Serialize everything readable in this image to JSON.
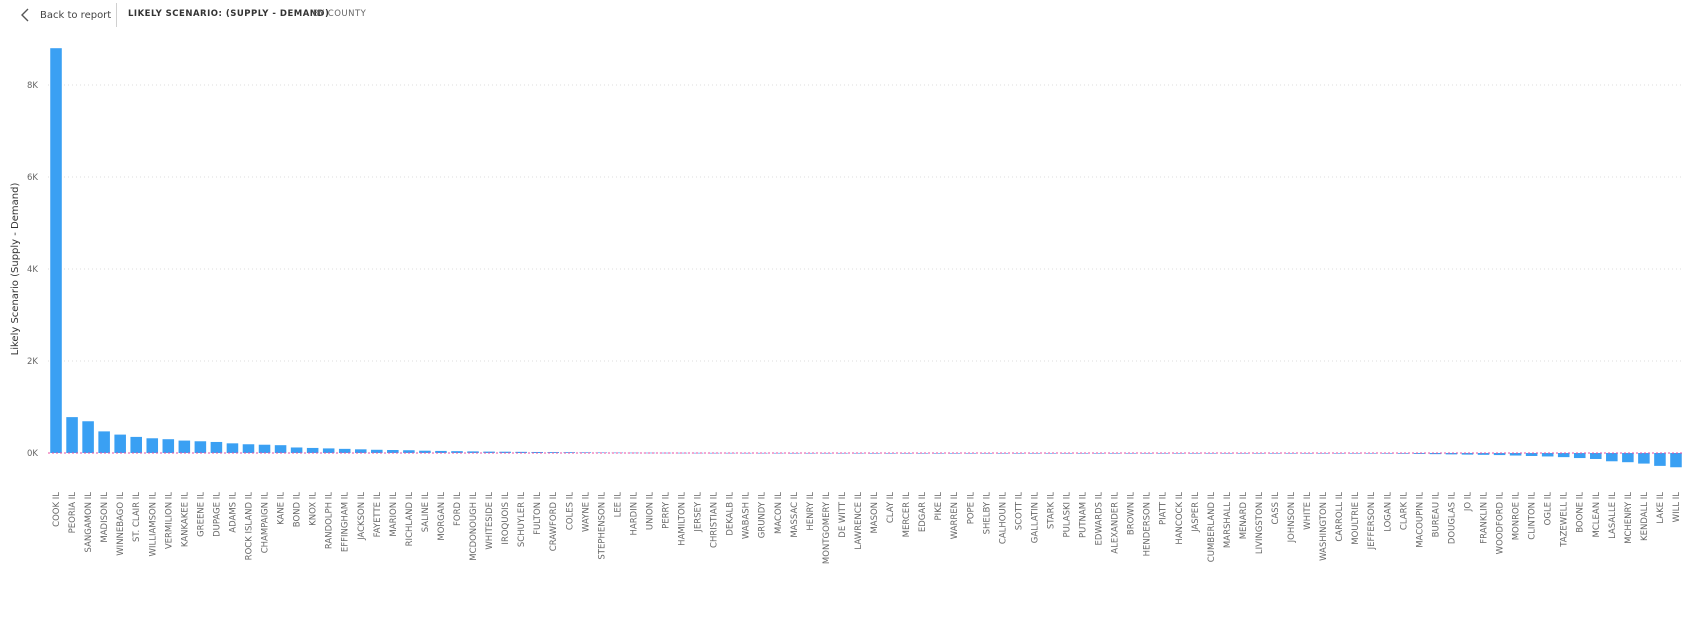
{
  "header": {
    "back_label": "Back to report",
    "title": "LIKELY SCENARIO: (SUPPLY - DEMAND)",
    "subtitle": "BY COUNTY"
  },
  "colors": {
    "bar": "#3AA0F3",
    "zero_line": "#E84FA0",
    "grid": "#dddddd"
  },
  "icons": {
    "back": "chevron-left-icon"
  },
  "chart_data": {
    "type": "bar",
    "ylabel": "Likely Scenario (Supply - Demand)",
    "xlabel": "",
    "ylim": [
      -400,
      8900
    ],
    "yticks": [
      0,
      2000,
      4000,
      6000,
      8000
    ],
    "ytick_labels": [
      "0K",
      "2K",
      "4K",
      "6K",
      "8K"
    ],
    "grid": true,
    "categories": [
      "COOK IL",
      "PEORIA IL",
      "SANGAMON IL",
      "MADISON IL",
      "WINNEBAGO IL",
      "ST. CLAIR IL",
      "WILLIAMSON IL",
      "VERMILION IL",
      "KANKAKEE IL",
      "GREENE IL",
      "DUPAGE IL",
      "ADAMS IL",
      "ROCK ISLAND IL",
      "CHAMPAIGN IL",
      "KANE IL",
      "BOND IL",
      "KNOX IL",
      "RANDOLPH IL",
      "EFFINGHAM IL",
      "JACKSON IL",
      "FAYETTE IL",
      "MARION IL",
      "RICHLAND IL",
      "SALINE IL",
      "MORGAN IL",
      "FORD IL",
      "MCDONOUGH IL",
      "WHITESIDE IL",
      "IROQUOIS IL",
      "SCHUYLER IL",
      "FULTON IL",
      "CRAWFORD IL",
      "COLES IL",
      "WAYNE IL",
      "STEPHENSON IL",
      "LEE IL",
      "HARDIN IL",
      "UNION IL",
      "PERRY IL",
      "HAMILTON IL",
      "JERSEY IL",
      "CHRISTIAN IL",
      "DEKALB IL",
      "WABASH IL",
      "GRUNDY IL",
      "MACON IL",
      "MASSAC IL",
      "HENRY IL",
      "MONTGOMERY IL",
      "DE WITT IL",
      "LAWRENCE IL",
      "MASON IL",
      "CLAY IL",
      "MERCER IL",
      "EDGAR IL",
      "PIKE IL",
      "WARREN IL",
      "POPE IL",
      "SHELBY IL",
      "CALHOUN IL",
      "SCOTT IL",
      "GALLATIN IL",
      "STARK IL",
      "PULASKI IL",
      "PUTNAM IL",
      "EDWARDS IL",
      "ALEXANDER IL",
      "BROWN IL",
      "HENDERSON IL",
      "PIATT IL",
      "HANCOCK IL",
      "JASPER IL",
      "CUMBERLAND IL",
      "MARSHALL IL",
      "MENARD IL",
      "LIVINGSTON IL",
      "CASS IL",
      "JOHNSON IL",
      "WHITE IL",
      "WASHINGTON IL",
      "CARROLL IL",
      "MOULTRIE IL",
      "JEFFERSON IL",
      "LOGAN IL",
      "CLARK IL",
      "MACOUPIN IL",
      "BUREAU IL",
      "DOUGLAS IL",
      "JO IL",
      "FRANKLIN IL",
      "WOODFORD IL",
      "MONROE IL",
      "CLINTON IL",
      "OGLE IL",
      "TAZEWELL IL",
      "BOONE IL",
      "MCLEAN IL",
      "LASALLE IL",
      "MCHENRY IL",
      "KENDALL IL",
      "LAKE IL",
      "WILL IL"
    ],
    "values": [
      8800,
      780,
      690,
      470,
      400,
      350,
      320,
      300,
      270,
      255,
      240,
      210,
      190,
      180,
      170,
      120,
      110,
      100,
      90,
      80,
      70,
      65,
      60,
      50,
      45,
      40,
      35,
      30,
      28,
      25,
      22,
      20,
      18,
      15,
      12,
      10,
      8,
      7,
      6,
      5,
      4,
      3,
      3,
      2,
      2,
      2,
      1,
      1,
      1,
      1,
      1,
      0,
      0,
      0,
      0,
      0,
      0,
      0,
      0,
      0,
      0,
      0,
      0,
      0,
      0,
      0,
      0,
      0,
      -1,
      -1,
      -2,
      -2,
      -3,
      -3,
      -4,
      -5,
      -5,
      -6,
      -7,
      -8,
      -9,
      -10,
      -12,
      -14,
      -16,
      -20,
      -25,
      -30,
      -35,
      -40,
      -45,
      -55,
      -65,
      -75,
      -90,
      -110,
      -130,
      -180,
      -200,
      -230,
      -280,
      -310
    ]
  }
}
